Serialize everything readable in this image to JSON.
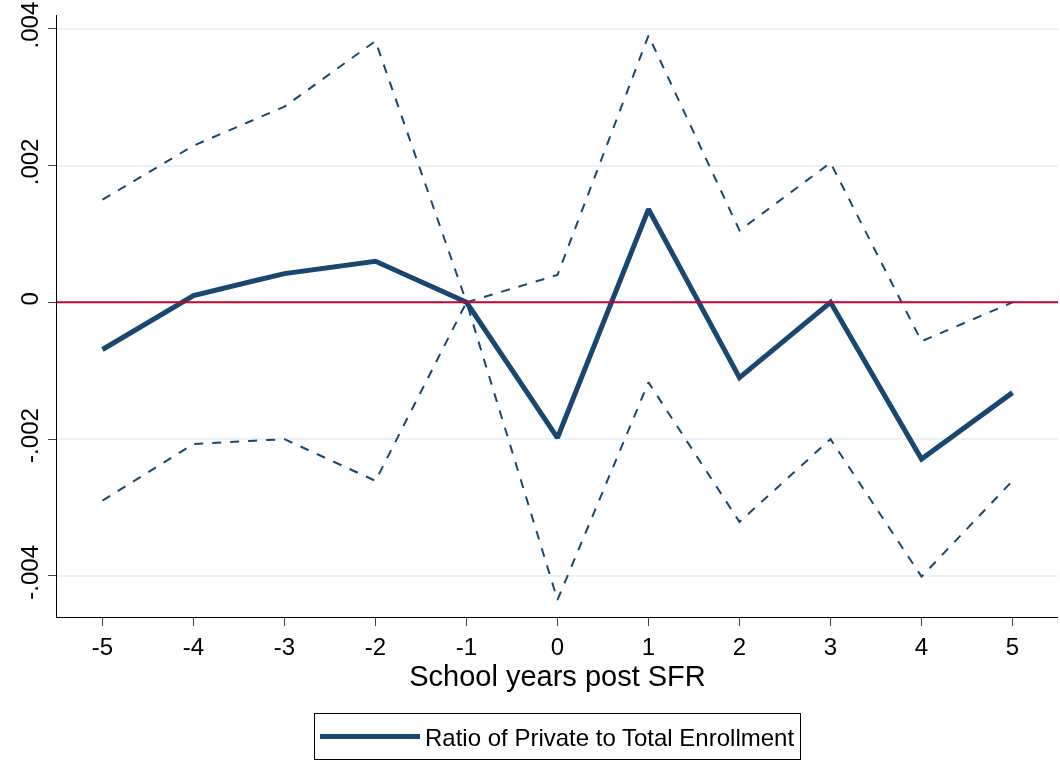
{
  "chart_data": {
    "type": "line",
    "xlabel": "School years post SFR",
    "x": [
      -5,
      -4,
      -3,
      -2,
      -1,
      0,
      1,
      2,
      3,
      4,
      5
    ],
    "xlim": [
      -5.5,
      5.5
    ],
    "xticks": [
      -5,
      -4,
      -3,
      -2,
      -1,
      0,
      1,
      2,
      3,
      4,
      5
    ],
    "ylim": [
      -0.0046,
      0.0042
    ],
    "yticks": [
      {
        "value": -0.004,
        "label": "-.004"
      },
      {
        "value": -0.002,
        "label": "-.002"
      },
      {
        "value": 0,
        "label": "0"
      },
      {
        "value": 0.002,
        "label": ".002"
      },
      {
        "value": 0.004,
        "label": ".004"
      }
    ],
    "grid": "y",
    "legend": "bottom",
    "marker": "none",
    "ref_lines": [
      {
        "axis": "y",
        "value": 0,
        "color": "#c10534"
      }
    ],
    "series": [
      {
        "name": "Ratio of Private to Total Enrollment",
        "color": "#1a476f",
        "line_style": "solid",
        "values": [
          -0.00069,
          0.0001,
          0.00042,
          0.0006,
          0,
          -0.00198,
          0.00136,
          -0.0011,
          0,
          -0.00229,
          -0.00132
        ]
      },
      {
        "color": "#1a476f",
        "line_style": "dashed",
        "values": [
          0.0015,
          0.00229,
          0.00286,
          0.00382,
          0,
          0.0004,
          0.0039,
          0.00105,
          0.00204,
          -0.00057,
          0
        ]
      },
      {
        "color": "#1a476f",
        "line_style": "dashed",
        "values": [
          -0.0029,
          -0.00207,
          -0.002,
          -0.00261,
          0,
          -0.00435,
          -0.00117,
          -0.00321,
          -0.002,
          -0.00401,
          -0.00261
        ]
      }
    ]
  }
}
